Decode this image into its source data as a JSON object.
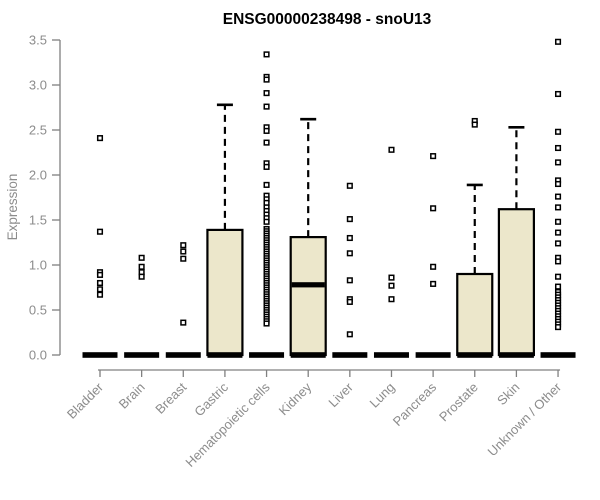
{
  "chart_data": {
    "type": "boxplot",
    "title": "ENSG00000238498 - snoU13",
    "ylabel": "Expression",
    "xlabel": "",
    "ylim": [
      0,
      3.5
    ],
    "yticks": [
      0,
      0.5,
      1,
      1.5,
      2,
      2.5,
      3,
      3.5
    ],
    "grid": false,
    "legend": "none",
    "colors": {
      "box_fill": "#ECE7CB",
      "box_stroke": "#000000",
      "median": "#000000",
      "zero_bar": "#000000",
      "outlier": "#000000",
      "axis": "#808080",
      "tick_label": "#8C8C8C",
      "title": "#000000",
      "background": "#FFFFFF"
    },
    "boxes": [
      {
        "label": "Bladder",
        "median": 0,
        "q1": 0,
        "q3": 0,
        "whisker_high": 0,
        "outliers": [
          2.41,
          1.37,
          0.92,
          0.89,
          0.8,
          0.73,
          0.67
        ]
      },
      {
        "label": "Brain",
        "median": 0,
        "q1": 0,
        "q3": 0,
        "whisker_high": 0,
        "outliers": [
          1.08,
          0.98,
          0.92,
          0.87
        ]
      },
      {
        "label": "Breast",
        "median": 0,
        "q1": 0,
        "q3": 0,
        "whisker_high": 0,
        "outliers": [
          1.22,
          1.15,
          1.07,
          0.36
        ]
      },
      {
        "label": "Gastric",
        "median": 0,
        "q1": 0,
        "q3": 1.39,
        "whisker_high": 2.78,
        "outliers": []
      },
      {
        "label": "Hematopoietic cells",
        "median": 0,
        "q1": 0,
        "q3": 0,
        "whisker_high": 0,
        "outliers": [
          3.34,
          3.09,
          3.06,
          2.91,
          2.76,
          2.53,
          2.49,
          2.36,
          2.13,
          2.09,
          1.89,
          1.77,
          1.73,
          1.69,
          1.64,
          1.6,
          1.56,
          1.52,
          1.48,
          1.4,
          1.375,
          1.35,
          1.325,
          1.3,
          1.275,
          1.25,
          1.225,
          1.2,
          1.175,
          1.15,
          1.125,
          1.1,
          1.075,
          1.05,
          1.025,
          1.0,
          0.975,
          0.95,
          0.925,
          0.9,
          0.875,
          0.85,
          0.825,
          0.8,
          0.775,
          0.75,
          0.725,
          0.7,
          0.675,
          0.65,
          0.625,
          0.6,
          0.575,
          0.55,
          0.525,
          0.5,
          0.475,
          0.45,
          0.425,
          0.4,
          0.375,
          0.35
        ]
      },
      {
        "label": "Kidney",
        "median": 0.78,
        "q1": 0,
        "q3": 1.31,
        "whisker_high": 2.62,
        "outliers": []
      },
      {
        "label": "Liver",
        "median": 0,
        "q1": 0,
        "q3": 0,
        "whisker_high": 0,
        "outliers": [
          1.88,
          1.51,
          1.3,
          1.13,
          0.83,
          0.62,
          0.59,
          0.23
        ]
      },
      {
        "label": "Lung",
        "median": 0,
        "q1": 0,
        "q3": 0,
        "whisker_high": 0,
        "outliers": [
          2.28,
          0.86,
          0.77,
          0.62
        ]
      },
      {
        "label": "Pancreas",
        "median": 0,
        "q1": 0,
        "q3": 0,
        "whisker_high": 0,
        "outliers": [
          2.21,
          1.63,
          0.98,
          0.79
        ]
      },
      {
        "label": "Prostate",
        "median": 0,
        "q1": 0,
        "q3": 0.9,
        "whisker_high": 1.89,
        "outliers": [
          2.6,
          2.56
        ]
      },
      {
        "label": "Skin",
        "median": 0,
        "q1": 0,
        "q3": 1.62,
        "whisker_high": 2.53,
        "outliers": []
      },
      {
        "label": "Unknown / Other",
        "median": 0,
        "q1": 0,
        "q3": 0,
        "whisker_high": 0,
        "outliers": [
          3.48,
          2.9,
          2.48,
          2.3,
          2.14,
          1.94,
          1.9,
          1.76,
          1.64,
          1.48,
          1.36,
          1.24,
          1.08,
          1.04,
          0.87,
          0.76,
          0.7,
          0.67,
          0.64,
          0.61,
          0.58,
          0.55,
          0.52,
          0.49,
          0.46,
          0.43,
          0.4,
          0.37,
          0.34,
          0.31
        ]
      }
    ]
  }
}
